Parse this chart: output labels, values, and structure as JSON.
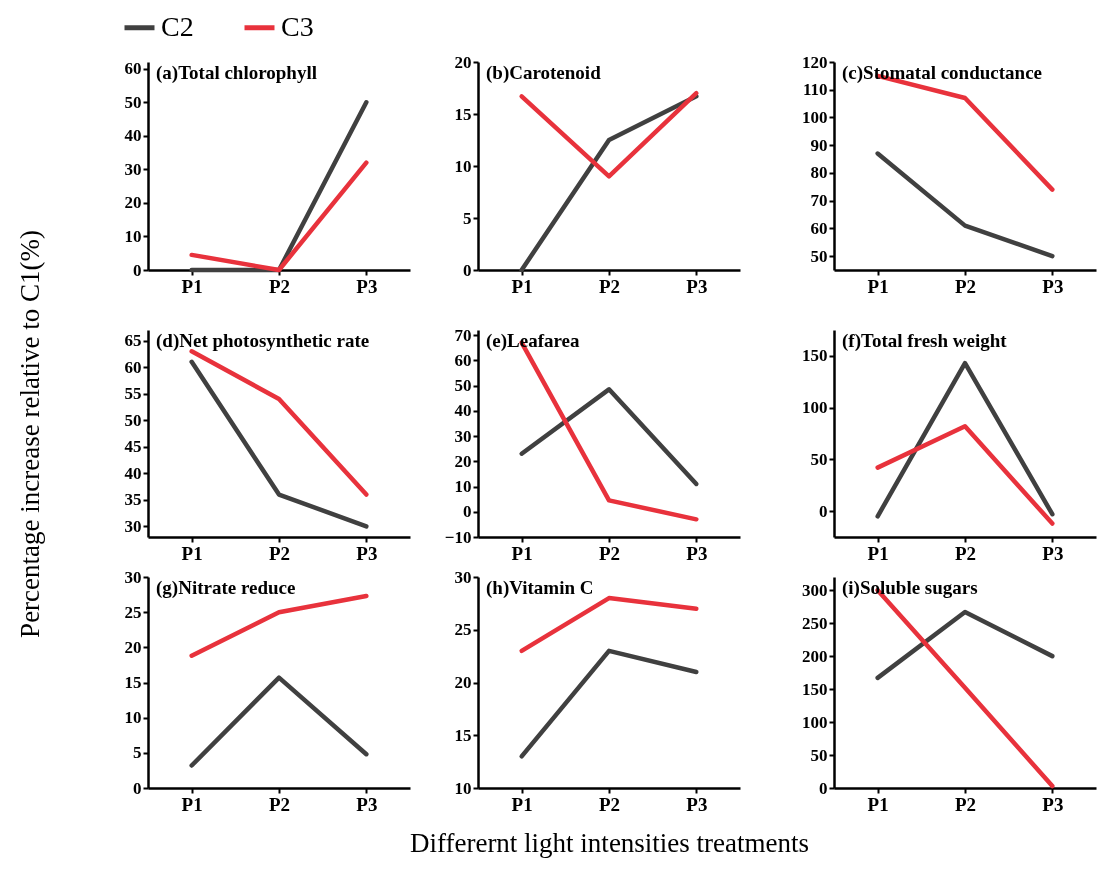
{
  "chart_data": [
    {
      "type": "line",
      "title": "(a)Total chlorophyll",
      "categories": [
        "P1",
        "P2",
        "P3"
      ],
      "ylim": [
        0,
        62
      ],
      "yticks": [
        0,
        10,
        20,
        30,
        40,
        50,
        60
      ],
      "legend": "top",
      "series": [
        {
          "name": "C2",
          "color": "#404040",
          "values": [
            0,
            0,
            50
          ]
        },
        {
          "name": "C3",
          "color": "#e8323c",
          "values": [
            4.5,
            0,
            32
          ]
        }
      ]
    },
    {
      "type": "line",
      "title": "(b)Carotenoid",
      "categories": [
        "P1",
        "P2",
        "P3"
      ],
      "ylim": [
        0,
        20
      ],
      "yticks": [
        0,
        5,
        10,
        15,
        20
      ],
      "series": [
        {
          "color": "#404040",
          "values": [
            0,
            12.5,
            16.7
          ]
        },
        {
          "color": "#e8323c",
          "values": [
            16.7,
            9,
            17
          ]
        }
      ]
    },
    {
      "type": "line",
      "title": "(c)Stomatal conductance",
      "categories": [
        "P1",
        "P2",
        "P3"
      ],
      "ylim": [
        45,
        120
      ],
      "yticks": [
        50,
        60,
        70,
        80,
        90,
        100,
        110,
        120
      ],
      "series": [
        {
          "color": "#404040",
          "values": [
            87,
            61,
            50
          ]
        },
        {
          "color": "#e8323c",
          "values": [
            115,
            107,
            74
          ]
        }
      ]
    },
    {
      "type": "line",
      "title": "(d)Net photosynthetic rate",
      "ylabel": "Percentage increase relative to C1(%)",
      "categories": [
        "P1",
        "P2",
        "P3"
      ],
      "ylim": [
        28,
        67
      ],
      "yticks": [
        30,
        35,
        40,
        45,
        50,
        55,
        60,
        65
      ],
      "series": [
        {
          "color": "#404040",
          "values": [
            61,
            36,
            30
          ]
        },
        {
          "color": "#e8323c",
          "values": [
            63,
            54,
            36
          ]
        }
      ]
    },
    {
      "type": "line",
      "title": "(e)Leafarea",
      "categories": [
        "P1",
        "P2",
        "P3"
      ],
      "ylim": [
        -10,
        72
      ],
      "yticks": [
        -10,
        0,
        10,
        20,
        30,
        40,
        50,
        60,
        70
      ],
      "series": [
        {
          "color": "#404040",
          "values": [
            23,
            48.5,
            11
          ]
        },
        {
          "color": "#e8323c",
          "values": [
            67,
            4.5,
            -3
          ]
        }
      ]
    },
    {
      "type": "line",
      "title": "(f)Total fresh weight",
      "categories": [
        "P1",
        "P2",
        "P3"
      ],
      "ylim": [
        -25,
        175
      ],
      "yticks": [
        0,
        50,
        100,
        150
      ],
      "series": [
        {
          "color": "#404040",
          "values": [
            -5,
            143,
            -3
          ]
        },
        {
          "color": "#e8323c",
          "values": [
            42,
            82,
            -12
          ]
        }
      ]
    },
    {
      "type": "line",
      "title": "(g)Nitrate reduce",
      "categories": [
        "P1",
        "P2",
        "P3"
      ],
      "ylim": [
        0,
        30
      ],
      "yticks": [
        0,
        5,
        10,
        15,
        20,
        25,
        30
      ],
      "series": [
        {
          "color": "#404040",
          "values": [
            3.2,
            15.7,
            4.8
          ]
        },
        {
          "color": "#e8323c",
          "values": [
            18.8,
            25,
            27.3
          ]
        }
      ]
    },
    {
      "type": "line",
      "title": "(h)Vitamin C",
      "xlabel": "Differernt light intensities treatments",
      "categories": [
        "P1",
        "P2",
        "P3"
      ],
      "ylim": [
        10,
        30
      ],
      "yticks": [
        10,
        15,
        20,
        25,
        30
      ],
      "series": [
        {
          "color": "#404040",
          "values": [
            13,
            23,
            21
          ]
        },
        {
          "color": "#e8323c",
          "values": [
            23,
            28,
            27
          ]
        }
      ]
    },
    {
      "type": "line",
      "title": "(i)Soluble sugars",
      "categories": [
        "P1",
        "P2",
        "P3"
      ],
      "ylim": [
        0,
        320
      ],
      "yticks": [
        0,
        50,
        100,
        150,
        200,
        250,
        300
      ],
      "series": [
        {
          "color": "#404040",
          "values": [
            167,
            267,
            200
          ]
        },
        {
          "color": "#e8323c",
          "values": [
            300,
            152,
            3
          ]
        }
      ]
    }
  ]
}
